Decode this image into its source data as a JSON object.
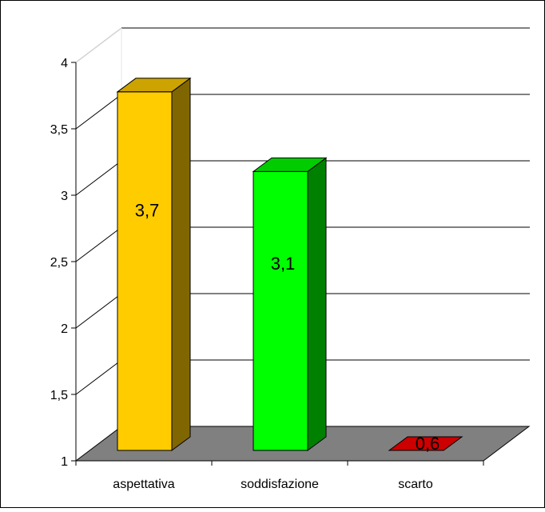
{
  "chart_data": {
    "type": "bar",
    "categories": [
      "aspettativa",
      "soddisfazione",
      "scarto"
    ],
    "values": [
      3.7,
      3.1,
      0.6
    ],
    "data_labels": [
      "3,7",
      "3,1",
      "0,6"
    ],
    "ylim": [
      1,
      4
    ],
    "yticks": [
      1,
      1.5,
      2,
      2.5,
      3,
      3.5,
      4
    ],
    "ytick_labels": [
      "1",
      "1,5",
      "2",
      "2,5",
      "3",
      "3,5",
      "4"
    ],
    "grid": true,
    "legend": "none",
    "style": "3d-column",
    "colors": {
      "aspettativa": {
        "front": "#FFCC00",
        "side": "#806600",
        "top": "#CCA300"
      },
      "soddisfazione": {
        "front": "#00FF00",
        "side": "#008000",
        "top": "#00CC00"
      },
      "scarto": {
        "front": "#CC0000",
        "side": "#800000",
        "top": "#CC0000"
      },
      "floor": "#808080",
      "gridline": "#000000"
    }
  }
}
